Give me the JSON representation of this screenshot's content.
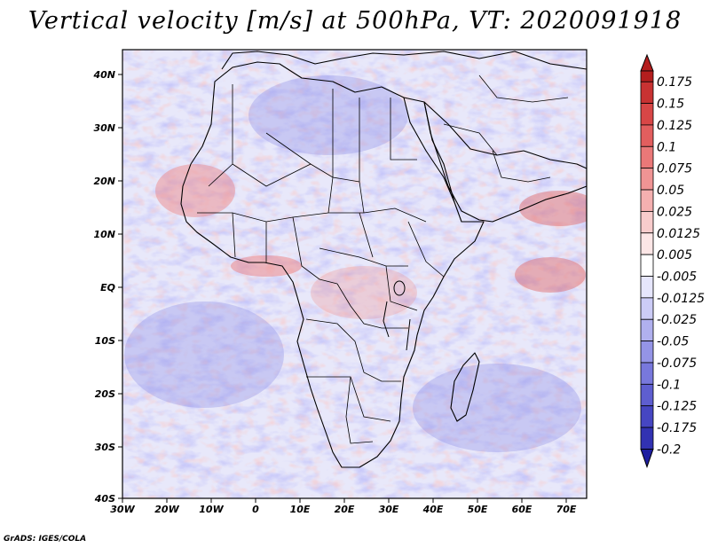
{
  "title": "Vertical velocity [m/s] at 500hPa, VT: 2020091918",
  "footer": "GrADS: IGES/COLA",
  "map": {
    "region": "Africa",
    "lon_range": [
      -30,
      75
    ],
    "lat_range": [
      -40,
      45
    ],
    "lon_ticks": [
      "30W",
      "20W",
      "10W",
      "0",
      "10E",
      "20E",
      "30E",
      "40E",
      "50E",
      "60E",
      "70E"
    ],
    "lat_ticks": [
      "40N",
      "30N",
      "20N",
      "10N",
      "EQ",
      "10S",
      "20S",
      "30S",
      "40S"
    ]
  },
  "colorbar": {
    "labels": [
      "0.175",
      "0.15",
      "0.125",
      "0.1",
      "0.075",
      "0.05",
      "0.025",
      "0.0125",
      "0.005",
      "-0.005",
      "-0.0125",
      "-0.025",
      "-0.05",
      "-0.075",
      "-0.1",
      "-0.125",
      "-0.175",
      "-0.2"
    ],
    "colors": [
      "#b41e1e",
      "#c83232",
      "#d84646",
      "#e25e5e",
      "#ea7878",
      "#f09494",
      "#f4b0b0",
      "#f8cccc",
      "#fce6e6",
      "#ffffff",
      "#e6e6fc",
      "#ccccf6",
      "#b0b0ee",
      "#9494e6",
      "#7878dc",
      "#5e5ed0",
      "#4646c2",
      "#3232b2",
      "#1e1ea0"
    ]
  }
}
